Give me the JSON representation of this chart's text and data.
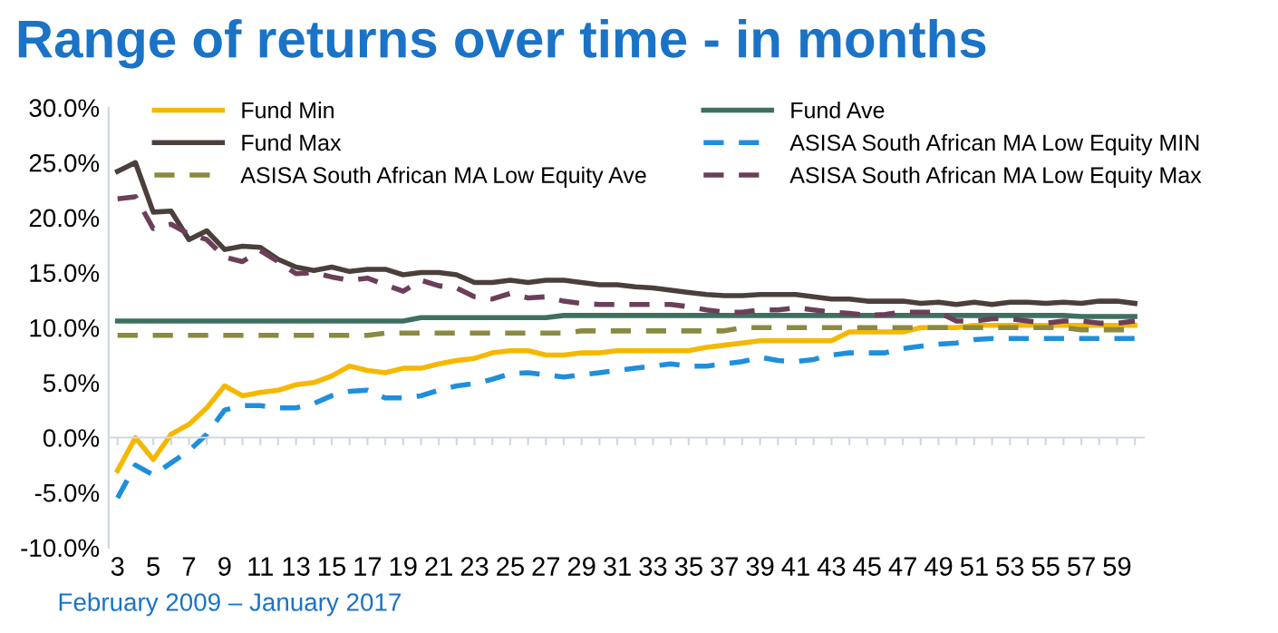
{
  "chart_data": {
    "type": "line",
    "title": "Range of returns over time - in months",
    "categories": [
      "3",
      null,
      "5",
      null,
      "7",
      null,
      "9",
      null,
      "11",
      null,
      "13",
      null,
      "15",
      null,
      "17",
      null,
      "19",
      null,
      "21",
      null,
      "23",
      null,
      "25",
      null,
      "27",
      null,
      "29",
      null,
      "31",
      null,
      "33",
      null,
      "35",
      null,
      "37",
      null,
      "39",
      null,
      "41",
      null,
      "43",
      null,
      "45",
      null,
      "47",
      null,
      "49",
      null,
      "51",
      null,
      "53",
      null,
      "55",
      null,
      "57",
      null,
      "59",
      null
    ],
    "series": [
      {
        "name": "Fund Min",
        "color": "#f5b800",
        "line_style": "solid",
        "values": [
          -3.0,
          0.0,
          -2.0,
          0.3,
          1.2,
          2.7,
          4.7,
          3.8,
          4.1,
          4.3,
          4.8,
          5.0,
          5.6,
          6.5,
          6.1,
          5.9,
          6.3,
          6.3,
          6.7,
          7.0,
          7.2,
          7.7,
          7.9,
          7.9,
          7.5,
          7.5,
          7.7,
          7.7,
          7.9,
          7.9,
          7.9,
          7.9,
          7.9,
          8.2,
          8.4,
          8.6,
          8.8,
          8.8,
          8.8,
          8.8,
          8.8,
          9.6,
          9.6,
          9.6,
          9.6,
          10.0,
          10.0,
          10.0,
          10.2,
          10.2,
          10.2,
          10.2,
          10.2,
          10.2,
          10.2,
          10.2,
          10.2,
          10.2
        ]
      },
      {
        "name": "Fund Ave",
        "color": "#3d7060",
        "line_style": "solid",
        "values": [
          10.6,
          10.6,
          10.6,
          10.6,
          10.6,
          10.6,
          10.6,
          10.6,
          10.6,
          10.6,
          10.6,
          10.6,
          10.6,
          10.6,
          10.6,
          10.6,
          10.6,
          10.9,
          10.9,
          10.9,
          10.9,
          10.9,
          10.9,
          10.9,
          10.9,
          11.1,
          11.1,
          11.1,
          11.1,
          11.1,
          11.1,
          11.1,
          11.1,
          11.1,
          11.1,
          11.1,
          11.1,
          11.1,
          11.1,
          11.1,
          11.1,
          11.1,
          11.1,
          11.1,
          11.1,
          11.1,
          11.1,
          11.1,
          11.1,
          11.1,
          11.1,
          11.1,
          11.1,
          11.1,
          11.0,
          11.0,
          11.0,
          11.0
        ]
      },
      {
        "name": "Fund Max",
        "color": "#4a3f3b",
        "line_style": "solid",
        "values": [
          24.2,
          25.0,
          20.5,
          20.6,
          18.0,
          18.8,
          17.1,
          17.4,
          17.3,
          16.2,
          15.5,
          15.2,
          15.5,
          15.1,
          15.3,
          15.3,
          14.8,
          15.0,
          15.0,
          14.8,
          14.1,
          14.1,
          14.3,
          14.1,
          14.3,
          14.3,
          14.1,
          13.9,
          13.9,
          13.7,
          13.6,
          13.4,
          13.2,
          13.0,
          12.9,
          12.9,
          13.0,
          13.0,
          13.0,
          12.8,
          12.6,
          12.6,
          12.4,
          12.4,
          12.4,
          12.2,
          12.3,
          12.1,
          12.3,
          12.1,
          12.3,
          12.3,
          12.2,
          12.3,
          12.2,
          12.4,
          12.4,
          12.2
        ]
      },
      {
        "name": "ASISA South African MA Low Equity MIN",
        "color": "#1f8fdc",
        "line_style": "dashed",
        "values": [
          -5.5,
          -2.5,
          -3.4,
          -2.3,
          -1.2,
          0.3,
          2.5,
          2.9,
          2.9,
          2.7,
          2.7,
          3.1,
          3.8,
          4.2,
          4.3,
          3.6,
          3.6,
          3.8,
          4.3,
          4.7,
          4.9,
          5.3,
          5.8,
          5.9,
          5.7,
          5.5,
          5.7,
          5.9,
          6.1,
          6.3,
          6.5,
          6.7,
          6.5,
          6.5,
          6.7,
          6.9,
          7.3,
          7.0,
          6.9,
          7.1,
          7.5,
          7.7,
          7.7,
          7.7,
          8.1,
          8.3,
          8.5,
          8.6,
          8.9,
          9.0,
          9.0,
          9.0,
          9.0,
          9.0,
          9.0,
          9.0,
          9.0,
          9.0
        ]
      },
      {
        "name": "ASISA South African MA Low Equity Ave",
        "color": "#8a8a40",
        "line_style": "dashed",
        "values": [
          9.3,
          9.3,
          9.3,
          9.3,
          9.3,
          9.3,
          9.3,
          9.3,
          9.3,
          9.3,
          9.3,
          9.3,
          9.3,
          9.3,
          9.3,
          9.5,
          9.5,
          9.5,
          9.5,
          9.5,
          9.5,
          9.5,
          9.5,
          9.5,
          9.5,
          9.5,
          9.7,
          9.7,
          9.7,
          9.7,
          9.7,
          9.7,
          9.7,
          9.7,
          9.7,
          10.0,
          10.0,
          10.0,
          10.0,
          10.0,
          10.0,
          10.0,
          10.0,
          10.0,
          10.0,
          10.0,
          10.0,
          10.0,
          10.0,
          10.0,
          10.0,
          10.0,
          10.0,
          10.0,
          9.8,
          9.8,
          9.8,
          9.8
        ]
      },
      {
        "name": "ASISA South African MA Low Equity Max",
        "color": "#6b3f5a",
        "line_style": "dashed",
        "values": [
          21.7,
          21.9,
          19.0,
          19.4,
          18.5,
          18.0,
          16.4,
          16.0,
          17.0,
          16.0,
          14.9,
          15.0,
          14.6,
          14.3,
          14.5,
          13.9,
          13.3,
          14.3,
          13.8,
          13.6,
          12.8,
          12.6,
          13.1,
          12.7,
          12.8,
          12.4,
          12.2,
          12.1,
          12.1,
          12.1,
          12.1,
          12.1,
          11.9,
          11.6,
          11.4,
          11.4,
          11.6,
          11.6,
          11.8,
          11.6,
          11.4,
          11.3,
          11.1,
          11.2,
          11.4,
          11.4,
          11.4,
          10.6,
          10.6,
          10.8,
          10.8,
          10.6,
          10.4,
          10.6,
          10.6,
          10.4,
          10.4,
          10.6
        ]
      }
    ],
    "ylim": [
      -10,
      30
    ],
    "yticks": [
      {
        "value": -10,
        "label": "-10.0%"
      },
      {
        "value": -5,
        "label": "-5.0%"
      },
      {
        "value": 0,
        "label": "0.0%"
      },
      {
        "value": 5,
        "label": "5.0%"
      },
      {
        "value": 10,
        "label": "10.0%"
      },
      {
        "value": 15,
        "label": "15.0%"
      },
      {
        "value": 20,
        "label": "20.0%"
      },
      {
        "value": 25,
        "label": "25.0%"
      },
      {
        "value": 30,
        "label": "30.0%"
      }
    ],
    "legend": "top",
    "marker": "none",
    "annotations": [
      "February 2009 – January 2017"
    ]
  }
}
